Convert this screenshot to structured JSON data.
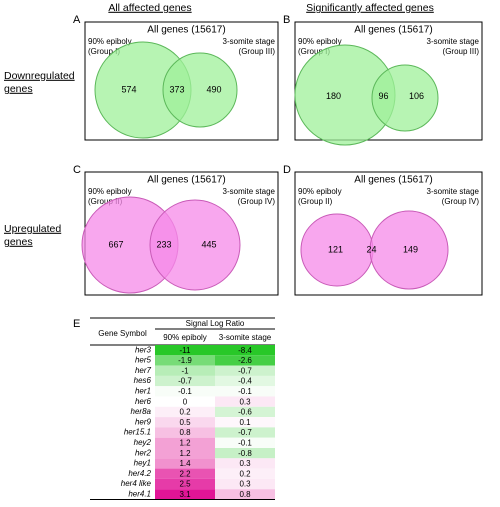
{
  "column_headers": [
    "All affected genes",
    "Significantly affected genes"
  ],
  "row_headers": [
    [
      "Downregulated",
      "genes"
    ],
    [
      "Upregulated",
      "genes"
    ]
  ],
  "panels": [
    {
      "label": "A",
      "title": "All genes (15617)",
      "left_label": [
        "90% epiboly",
        "(Group I)"
      ],
      "right_label": [
        "3-somite stage",
        "(Group III)"
      ],
      "left_only": 574,
      "overlap": 373,
      "right_only": 490,
      "color": "#9ff09a",
      "edge": "#5cb85a"
    },
    {
      "label": "B",
      "title": "All genes (15617)",
      "left_label": [
        "90% epiboly",
        "(Group I)"
      ],
      "right_label": [
        "3-somite stage",
        "(Group III)"
      ],
      "left_only": 180,
      "overlap": 96,
      "right_only": 106,
      "color": "#9ff09a",
      "edge": "#5cb85a"
    },
    {
      "label": "C",
      "title": "All genes (15617)",
      "left_label": [
        "90% epiboly",
        "(Group II)"
      ],
      "right_label": [
        "3-somite  stage",
        "(Group IV)"
      ],
      "left_only": 667,
      "overlap": 233,
      "right_only": 445,
      "color": "#f58ae8",
      "edge": "#c95bb8"
    },
    {
      "label": "D",
      "title": "All genes (15617)",
      "left_label": [
        "90% epiboly",
        "(Group II)"
      ],
      "right_label": [
        "3-somite stage",
        "(Group IV)"
      ],
      "left_only": 121,
      "overlap": 24,
      "right_only": 149,
      "color": "#f58ae8",
      "edge": "#c95bb8"
    }
  ],
  "table": {
    "label": "E",
    "group_header": "Signal Log Ratio",
    "columns": [
      "Gene Symbol",
      "90% epiboly",
      "3-somite stage"
    ],
    "rows": [
      {
        "gene": "her3",
        "color": "#3b78c0",
        "values": [
          -11,
          -8.4
        ]
      },
      {
        "gene": "her5",
        "color": "#3b78c0",
        "values": [
          -1.9,
          -2.6
        ]
      },
      {
        "gene": "her7",
        "color": "#d02828",
        "values": [
          -1,
          -0.7
        ]
      },
      {
        "gene": "hes6",
        "color": "#3b78c0",
        "values": [
          -0.7,
          -0.4
        ]
      },
      {
        "gene": "her1",
        "color": "#d02828",
        "values": [
          -0.1,
          -0.1
        ]
      },
      {
        "gene": "her6",
        "color": "#d02828",
        "values": [
          0,
          0.3
        ]
      },
      {
        "gene": "her8a",
        "color": "#d02828",
        "values": [
          0.2,
          -0.6
        ]
      },
      {
        "gene": "her9",
        "color": "#3b78c0",
        "values": [
          0.5,
          0.1
        ]
      },
      {
        "gene": "her15.1",
        "color": "#d02828",
        "values": [
          0.8,
          -0.7
        ]
      },
      {
        "gene": "hey2",
        "color": "#000000",
        "values": [
          1.2,
          -0.1
        ]
      },
      {
        "gene": "her2",
        "color": "#d02828",
        "values": [
          1.2,
          -0.8
        ]
      },
      {
        "gene": "hey1",
        "color": "#d02828",
        "values": [
          1.4,
          0.3
        ]
      },
      {
        "gene": "her4.2",
        "color": "#d02828",
        "values": [
          2.2,
          0.2
        ]
      },
      {
        "gene": "her4 like",
        "color": "#d02828",
        "values": [
          2.5,
          0.3
        ]
      },
      {
        "gene": "her4.1",
        "color": "#d02828",
        "values": [
          3.1,
          0.8
        ]
      }
    ]
  }
}
